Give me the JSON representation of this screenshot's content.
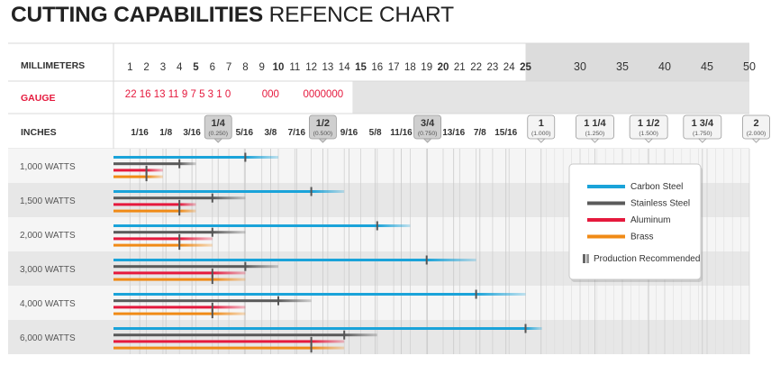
{
  "title": {
    "bold": "CUTTING CAPABILITIES",
    "rest": "REFENCE CHART"
  },
  "row_labels": {
    "millimeters": "MILLIMETERS",
    "gauge": "GAUGE",
    "inches": "INCHES"
  },
  "legend_items": [
    {
      "name": "Carbon Steel",
      "color": "#1aa3d9"
    },
    {
      "name": "Stainless Steel",
      "color": "#5a5a5a"
    },
    {
      "name": "Aluminum",
      "color": "#e5193d"
    },
    {
      "name": "Brass",
      "color": "#f08a16"
    },
    {
      "name": "Production Recommended",
      "color": "#666666"
    }
  ],
  "chart_data": {
    "type": "bar",
    "x_unit": "mm",
    "x_range": [
      0,
      50
    ],
    "mm_ticks": [
      {
        "label": "1",
        "mm": 1
      },
      {
        "label": "2",
        "mm": 2
      },
      {
        "label": "3",
        "mm": 3
      },
      {
        "label": "4",
        "mm": 4
      },
      {
        "label": "5",
        "mm": 5
      },
      {
        "label": "6",
        "mm": 6
      },
      {
        "label": "7",
        "mm": 7
      },
      {
        "label": "8",
        "mm": 8
      },
      {
        "label": "9",
        "mm": 9
      },
      {
        "label": "10",
        "mm": 10
      },
      {
        "label": "11",
        "mm": 11
      },
      {
        "label": "12",
        "mm": 12
      },
      {
        "label": "13",
        "mm": 13
      },
      {
        "label": "14",
        "mm": 14
      },
      {
        "label": "15",
        "mm": 15
      },
      {
        "label": "16",
        "mm": 16
      },
      {
        "label": "17",
        "mm": 17
      },
      {
        "label": "18",
        "mm": 18
      },
      {
        "label": "19",
        "mm": 19
      },
      {
        "label": "20",
        "mm": 20
      },
      {
        "label": "21",
        "mm": 21
      },
      {
        "label": "22",
        "mm": 22
      },
      {
        "label": "23",
        "mm": 23
      },
      {
        "label": "24",
        "mm": 24
      },
      {
        "label": "25",
        "mm": 25
      },
      {
        "label": "30",
        "mm": 30
      },
      {
        "label": "35",
        "mm": 35
      },
      {
        "label": "40",
        "mm": 40
      },
      {
        "label": "45",
        "mm": 45
      },
      {
        "label": "50",
        "mm": 50
      }
    ],
    "gauge_groups": [
      {
        "labels": "22 16 13 11 9 7 5 3 1 0",
        "mm": 0.7
      },
      {
        "labels": "000",
        "mm": 9.0
      },
      {
        "labels": "0000000",
        "mm": 11.5
      }
    ],
    "inch_ticks": [
      {
        "label": "1/16",
        "mm": 1.59
      },
      {
        "label": "1/8",
        "mm": 3.18
      },
      {
        "label": "3/16",
        "mm": 4.76
      },
      {
        "label": "1/4",
        "sub": "(0.250)",
        "mm": 6.35
      },
      {
        "label": "5/16",
        "mm": 7.94
      },
      {
        "label": "3/8",
        "mm": 9.53
      },
      {
        "label": "7/16",
        "mm": 11.11
      },
      {
        "label": "1/2",
        "sub": "(0.500)",
        "mm": 12.7
      },
      {
        "label": "9/16",
        "mm": 14.29
      },
      {
        "label": "5/8",
        "mm": 15.88
      },
      {
        "label": "11/16",
        "mm": 17.46
      },
      {
        "label": "3/4",
        "sub": "(0.750)",
        "mm": 19.05
      },
      {
        "label": "13/16",
        "mm": 20.64
      },
      {
        "label": "7/8",
        "mm": 22.23
      },
      {
        "label": "15/16",
        "mm": 23.81
      },
      {
        "label": "1",
        "sub": "(1.000)",
        "mm": 25.4
      },
      {
        "label": "1 1/4",
        "sub": "(1.250)",
        "mm": 31.75
      },
      {
        "label": "1 1/2",
        "sub": "(1.500)",
        "mm": 38.1
      },
      {
        "label": "1 3/4",
        "sub": "(1.750)",
        "mm": 44.45
      },
      {
        "label": "2",
        "sub": "(2.000)",
        "mm": 50.8
      }
    ],
    "series": [
      {
        "name": "Carbon Steel",
        "color": "#1aa3d9"
      },
      {
        "name": "Stainless Steel",
        "color": "#5a5a5a"
      },
      {
        "name": "Aluminum",
        "color": "#e5193d"
      },
      {
        "name": "Brass",
        "color": "#f08a16"
      }
    ],
    "groups": [
      {
        "name": "1,000 WATTS",
        "bars": [
          {
            "series": "Carbon Steel",
            "rec": 8,
            "max": 10
          },
          {
            "series": "Stainless Steel",
            "rec": 4,
            "max": 5
          },
          {
            "series": "Aluminum",
            "rec": 2,
            "max": 3
          },
          {
            "series": "Brass",
            "rec": 2,
            "max": 3
          }
        ]
      },
      {
        "name": "1,500 WATTS",
        "bars": [
          {
            "series": "Carbon Steel",
            "rec": 12,
            "max": 14
          },
          {
            "series": "Stainless Steel",
            "rec": 6,
            "max": 8
          },
          {
            "series": "Aluminum",
            "rec": 4,
            "max": 5
          },
          {
            "series": "Brass",
            "rec": 4,
            "max": 5
          }
        ]
      },
      {
        "name": "2,000 WATTS",
        "bars": [
          {
            "series": "Carbon Steel",
            "rec": 16,
            "max": 18
          },
          {
            "series": "Stainless Steel",
            "rec": 6,
            "max": 8
          },
          {
            "series": "Aluminum",
            "rec": 4,
            "max": 6
          },
          {
            "series": "Brass",
            "rec": 4,
            "max": 6
          }
        ]
      },
      {
        "name": "3,000 WATTS",
        "bars": [
          {
            "series": "Carbon Steel",
            "rec": 19,
            "max": 22
          },
          {
            "series": "Stainless Steel",
            "rec": 8,
            "max": 10
          },
          {
            "series": "Aluminum",
            "rec": 6,
            "max": 8
          },
          {
            "series": "Brass",
            "rec": 6,
            "max": 8
          }
        ]
      },
      {
        "name": "4,000 WATTS",
        "bars": [
          {
            "series": "Carbon Steel",
            "rec": 22,
            "max": 25
          },
          {
            "series": "Stainless Steel",
            "rec": 10,
            "max": 12
          },
          {
            "series": "Aluminum",
            "rec": 6,
            "max": 8
          },
          {
            "series": "Brass",
            "rec": 6,
            "max": 8
          }
        ]
      },
      {
        "name": "6,000 WATTS",
        "bars": [
          {
            "series": "Carbon Steel",
            "rec": 25,
            "max": 25.5
          },
          {
            "series": "Stainless Steel",
            "rec": 14,
            "max": 16
          },
          {
            "series": "Aluminum",
            "rec": 12,
            "max": 14
          },
          {
            "series": "Brass",
            "rec": 12,
            "max": 14
          }
        ]
      }
    ]
  }
}
